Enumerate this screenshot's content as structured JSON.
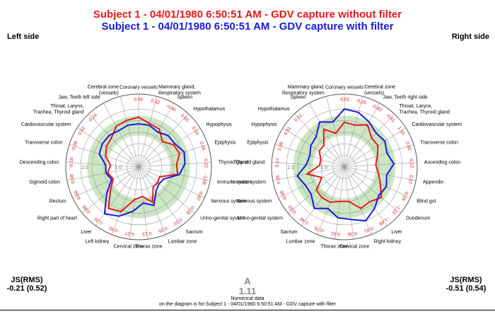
{
  "titles": {
    "without_filter": "Subject 1 - 04/01/1980 6:50:51 AM - GDV capture without filter",
    "with_filter": "Subject 1 - 04/01/1980 6:50:51 AM - GDV capture with filter"
  },
  "sides": {
    "left": "Left side",
    "right": "Right side"
  },
  "colors": {
    "without_filter": "#e8171c",
    "with_filter": "#1a1ad8",
    "band": "#cbe6c3",
    "grid": "#9a9a9a"
  },
  "chart_data": [
    {
      "type": "radar",
      "side": "left",
      "ring_labels": [
        "2.0",
        "1.0"
      ],
      "categories": [
        "Coronary vessels",
        "Mammary gland, Respiratory system",
        "Spleen",
        "Hypothalamus",
        "Hypophysis",
        "Epiphysis",
        "Thyroid gland",
        "Immune system",
        "Nervous system",
        "Urino-genital system",
        "Sacrum",
        "Lumbar zone",
        "Thorax zone",
        "Cervical zone",
        "Left kidney",
        "Liver",
        "Right part of heart",
        "Rectum",
        "Sigmoid colon",
        "Descending colon",
        "Transverse colon",
        "Cardiovascular system",
        "Throat, Larynx, Trachea, Thyroid gland",
        "Jaw, Teeth left side",
        "Cerebral zone (vessels)"
      ],
      "value_labels": [
        "0.60",
        "0.32",
        "-0.40",
        "0.65",
        "0.54",
        "0.26",
        "-0.22",
        "-1.06",
        "-0.87",
        "-0.28",
        "-0.10",
        "-0.26",
        "0.13",
        "-0.27",
        "-0.92",
        "-1.20",
        "-0.86",
        "-0.68",
        "-0.98",
        "-0.16",
        "-0.38",
        "0.62",
        "-0.24"
      ],
      "series": [
        {
          "name": "without filter",
          "values": [
            1.5,
            1.35,
            1.3,
            1.05,
            1.25,
            1.3,
            1.15,
            1.2,
            0.7,
            0.75,
            0.75,
            1.15,
            0.9,
            1.0,
            1.45,
            1.55,
            1.1,
            0.85,
            0.95,
            0.85,
            1.05,
            1.15,
            1.2,
            1.4,
            1.45
          ]
        },
        {
          "name": "with filter",
          "values": [
            1.3,
            1.3,
            1.2,
            1.3,
            1.3,
            1.45,
            1.4,
            1.25,
            0.85,
            0.8,
            0.9,
            1.25,
            1.1,
            1.35,
            1.6,
            1.75,
            1.25,
            0.9,
            1.0,
            1.0,
            1.25,
            1.3,
            1.3,
            1.25,
            1.3
          ]
        }
      ]
    },
    {
      "type": "radar",
      "side": "right",
      "ring_labels": [
        "2.0",
        "1.0"
      ],
      "categories": [
        "Coronary vessels",
        "Cerebral zone (vessels)",
        "Jaw, Teeth right side",
        "Throat, Larynx, Trachea, Thyroid gland",
        "Cardiovascular system",
        "Transverse colon",
        "Ascending colon",
        "Appendix",
        "Blind gut",
        "Duodenum",
        "Liver",
        "Right kidney",
        "Cervical zone",
        "Thorax zone",
        "Lumbar zone",
        "Sacrum",
        "Urino-genital system",
        "Nervous system",
        "Immune system",
        "Thyroid gland",
        "Epiphysis",
        "Hypophysis",
        "Hypothalamus",
        "Spleen",
        "Mammary gland, Respiratory system"
      ],
      "value_labels": [
        "-0.01",
        "-0.26",
        "-0.83",
        "-0.61",
        "1.10",
        "0.80",
        "-0.12",
        "0.07",
        "-0.29",
        "-1.22",
        "-1.48",
        "-0.41",
        "-0.36",
        "-0.51",
        "-0.76",
        "-1.48",
        "-0.02",
        "-0.68",
        "0.05",
        "0.14",
        "0.66",
        "0.61",
        "0.31"
      ],
      "series": [
        {
          "name": "without filter",
          "values": [
            1.35,
            1.3,
            1.45,
            1.2,
            1.2,
            1.05,
            0.95,
            1.05,
            1.2,
            1.45,
            1.3,
            1.35,
            1.05,
            1.05,
            1.15,
            1.15,
            1.1,
            0.75,
            1.15,
            0.75,
            0.75,
            0.9,
            0.9,
            1.3,
            1.05
          ]
        },
        {
          "name": "with filter",
          "values": [
            1.75,
            1.7,
            1.55,
            1.4,
            1.45,
            1.35,
            1.5,
            1.3,
            1.4,
            1.35,
            1.55,
            1.75,
            1.6,
            1.55,
            1.35,
            1.55,
            1.3,
            1.3,
            1.45,
            1.15,
            1.1,
            1.2,
            1.25,
            1.55,
            1.4
          ]
        }
      ]
    }
  ],
  "footer": {
    "js_label": "JS(RMS)",
    "js_left_value": "-0.21 (0.52)",
    "js_right_value": "-0.51 (0.54)",
    "a_label": "A",
    "a_value": "1.11",
    "numerical_line1": "Numerical data",
    "numerical_line2": "on the diagram is for:Subject 1 - 04/01/1980 6:50:51 AM - GDV capture with filter"
  }
}
